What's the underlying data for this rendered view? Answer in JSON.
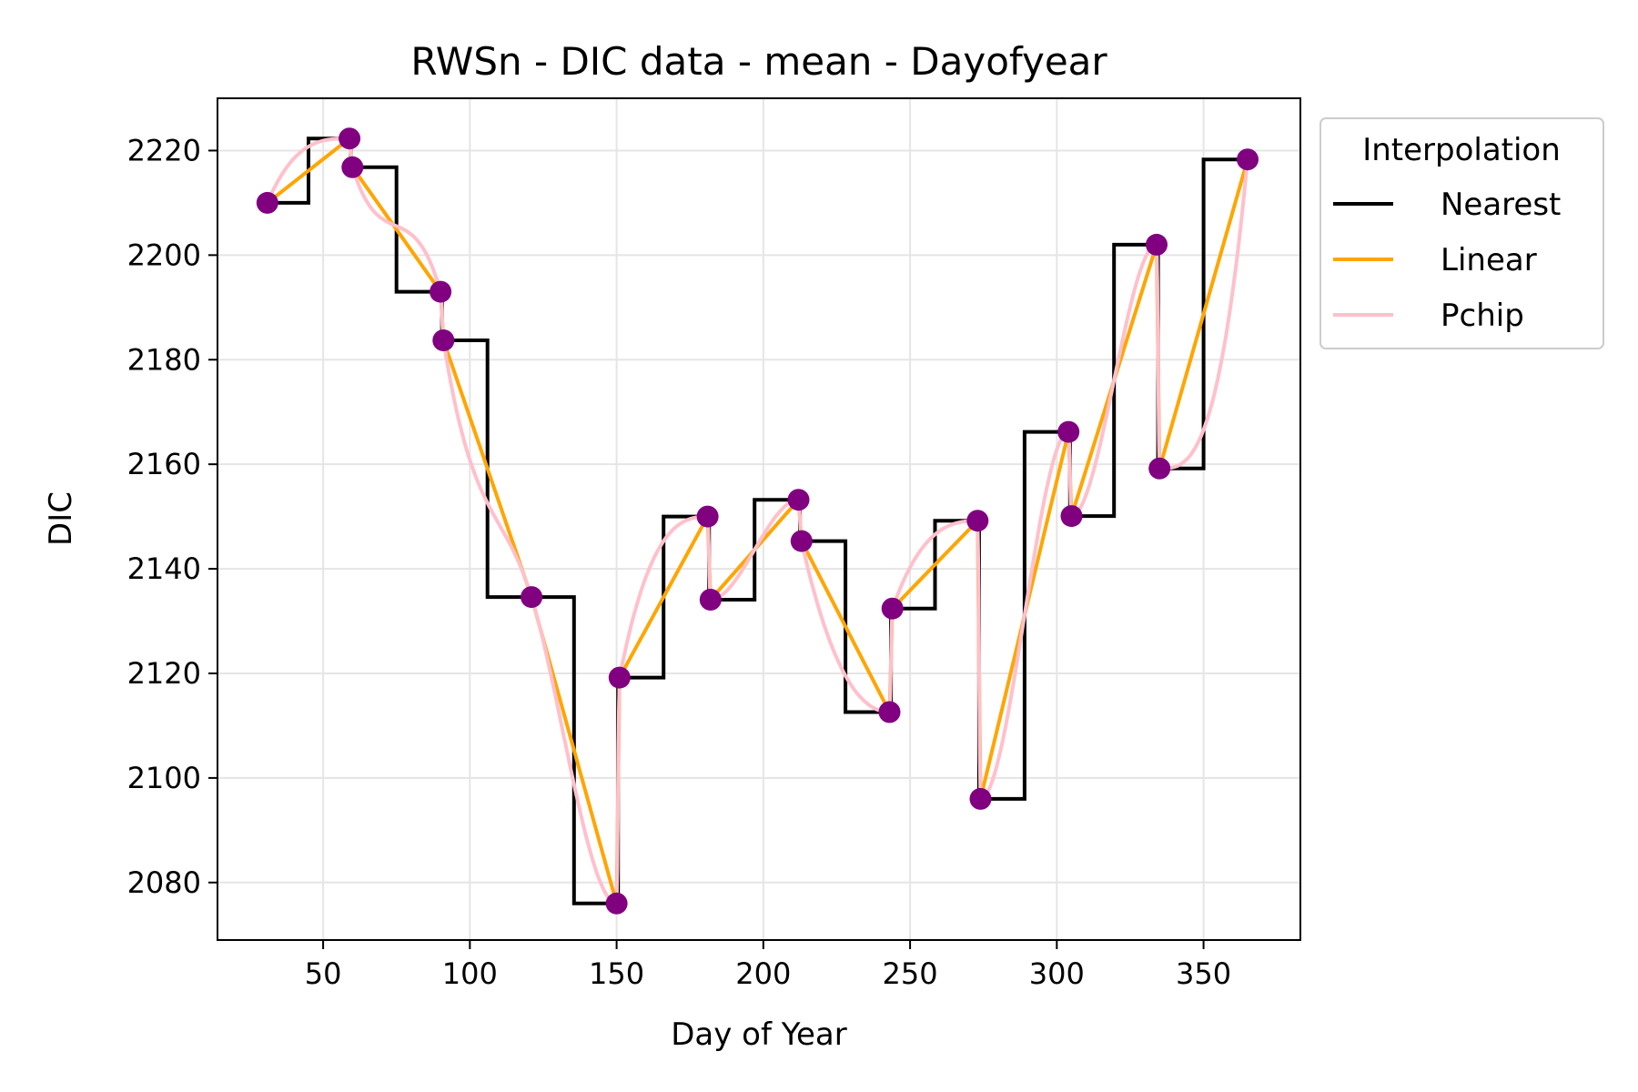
{
  "chart_data": {
    "type": "line",
    "title": "RWSn - DIC data - mean - Dayofyear",
    "xlabel": "Day of Year",
    "ylabel": "DIC",
    "xlim": [
      14,
      383
    ],
    "ylim": [
      2069,
      2230
    ],
    "xticks": [
      50,
      100,
      150,
      200,
      250,
      300,
      350
    ],
    "yticks": [
      2080,
      2100,
      2120,
      2140,
      2160,
      2180,
      2200,
      2220
    ],
    "grid": true,
    "legend": {
      "title": "Interpolation",
      "placement": "outside right, top",
      "entries": [
        "Nearest",
        "Linear",
        "Pchip"
      ]
    },
    "points": {
      "color": "#800080",
      "x": [
        31,
        59,
        60,
        90,
        91,
        121,
        150,
        151,
        181,
        182,
        212,
        213,
        243,
        244,
        273,
        274,
        304,
        305,
        334,
        335,
        365
      ],
      "y": [
        2210,
        2222.3,
        2216.8,
        2193,
        2183.7,
        2134.6,
        2076,
        2119.2,
        2150,
        2134.1,
        2153.2,
        2145.3,
        2112.6,
        2132.4,
        2149.2,
        2096,
        2166.2,
        2150.1,
        2202,
        2159.2,
        2218.3
      ]
    },
    "series": [
      {
        "name": "Nearest",
        "color": "#000000",
        "method": "nearest"
      },
      {
        "name": "Linear",
        "color": "#FFA500",
        "method": "linear"
      },
      {
        "name": "Pchip",
        "color": "#FFC0CB",
        "method": "pchip"
      }
    ]
  }
}
